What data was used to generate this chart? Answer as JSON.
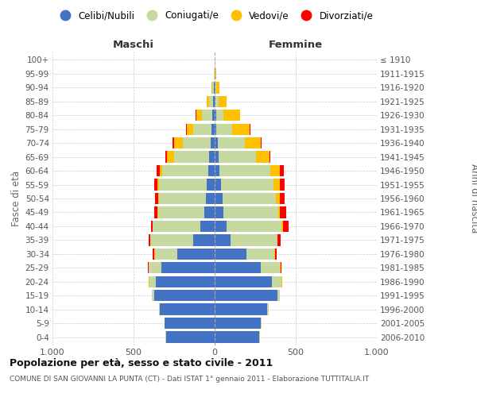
{
  "age_groups": [
    "0-4",
    "5-9",
    "10-14",
    "15-19",
    "20-24",
    "25-29",
    "30-34",
    "35-39",
    "40-44",
    "45-49",
    "50-54",
    "55-59",
    "60-64",
    "65-69",
    "70-74",
    "75-79",
    "80-84",
    "85-89",
    "90-94",
    "95-99",
    "100+"
  ],
  "birth_years": [
    "2006-2010",
    "2001-2005",
    "1996-2000",
    "1991-1995",
    "1986-1990",
    "1981-1985",
    "1976-1980",
    "1971-1975",
    "1966-1970",
    "1961-1965",
    "1956-1960",
    "1951-1955",
    "1946-1950",
    "1941-1945",
    "1936-1940",
    "1931-1935",
    "1926-1930",
    "1921-1925",
    "1916-1920",
    "1911-1915",
    "≤ 1910"
  ],
  "male_celibi": [
    300,
    308,
    340,
    375,
    365,
    330,
    230,
    130,
    90,
    65,
    55,
    50,
    40,
    35,
    25,
    20,
    15,
    8,
    5,
    2,
    1
  ],
  "male_coniugati": [
    2,
    2,
    5,
    10,
    38,
    75,
    140,
    265,
    290,
    285,
    290,
    295,
    285,
    215,
    170,
    110,
    65,
    25,
    8,
    3,
    0
  ],
  "male_vedovi": [
    0,
    0,
    0,
    0,
    2,
    2,
    2,
    2,
    2,
    3,
    5,
    10,
    15,
    45,
    55,
    40,
    35,
    18,
    5,
    2,
    0
  ],
  "male_divorziati": [
    0,
    0,
    0,
    0,
    3,
    5,
    8,
    10,
    10,
    22,
    18,
    18,
    18,
    8,
    8,
    5,
    2,
    0,
    0,
    0,
    0
  ],
  "female_celibi": [
    275,
    285,
    325,
    385,
    355,
    285,
    195,
    100,
    75,
    55,
    50,
    40,
    30,
    25,
    18,
    12,
    8,
    5,
    4,
    2,
    1
  ],
  "female_coniugati": [
    2,
    3,
    7,
    18,
    58,
    118,
    172,
    285,
    338,
    335,
    325,
    325,
    315,
    230,
    170,
    98,
    48,
    18,
    8,
    3,
    0
  ],
  "female_vedovi": [
    0,
    0,
    0,
    0,
    3,
    4,
    4,
    4,
    9,
    14,
    28,
    38,
    58,
    82,
    98,
    108,
    100,
    50,
    15,
    4,
    0
  ],
  "female_divorziati": [
    0,
    0,
    0,
    0,
    3,
    5,
    12,
    18,
    35,
    35,
    28,
    28,
    25,
    5,
    5,
    5,
    2,
    0,
    0,
    0,
    0
  ],
  "color_celibi": "#4472C4",
  "color_coniugati": "#C5D9A0",
  "color_vedovi": "#FFC000",
  "color_divorziati": "#FF0000",
  "title1": "Popolazione per età, sesso e stato civile - 2011",
  "title2": "COMUNE DI SAN GIOVANNI LA PUNTA (CT) - Dati ISTAT 1° gennaio 2011 - Elaborazione TUTTITALIA.IT",
  "xlabel_left": "Maschi",
  "xlabel_right": "Femmine",
  "ylabel_left": "Fasce di età",
  "ylabel_right": "Anni di nascita",
  "xlim": 1000,
  "bg_color": "#ffffff",
  "grid_color": "#cccccc"
}
